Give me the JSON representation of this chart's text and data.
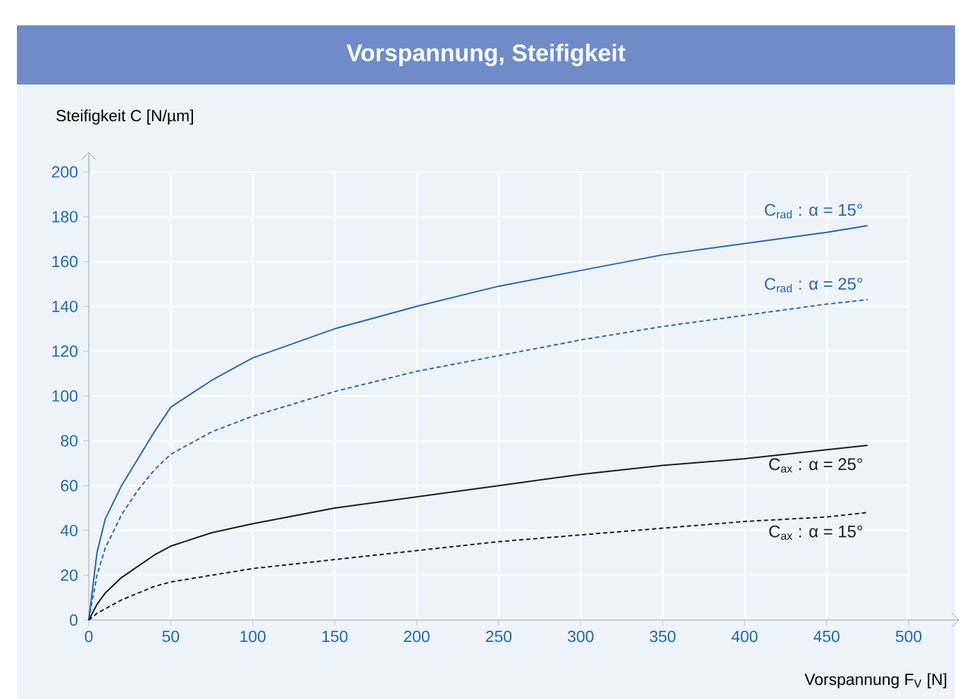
{
  "chart_data": {
    "type": "line",
    "title": "Vorspannung, Steifigkeit",
    "xlabel": "Vorspannung F$_{V}$ [N]",
    "ylabel": "Steifigkeit C [N/µm]",
    "x": [
      0,
      5,
      10,
      20,
      30,
      40,
      50,
      75,
      100,
      150,
      200,
      250,
      300,
      350,
      400,
      450,
      475
    ],
    "series": [
      {
        "name": "C$_{rad}$ : α = 15°",
        "color": "#1f68b0",
        "line_style": "solid",
        "values": [
          0,
          30,
          45,
          60,
          72,
          84,
          95,
          107,
          117,
          130,
          140,
          149,
          156,
          163,
          168,
          173,
          176
        ]
      },
      {
        "name": "C$_{rad}$ : α = 25°",
        "color": "#1f68b0",
        "line_style": "dashed",
        "values": [
          0,
          20,
          32,
          47,
          58,
          67,
          74,
          84,
          91,
          102,
          111,
          118,
          125,
          131,
          136,
          141,
          143
        ]
      },
      {
        "name": "C$_{ax}$ : α = 25°",
        "color": "#1a1a1a",
        "line_style": "solid",
        "values": [
          0,
          7,
          12,
          19,
          24,
          29,
          33,
          39,
          43,
          50,
          55,
          60,
          65,
          69,
          72,
          76,
          78
        ]
      },
      {
        "name": "C$_{ax}$ : α = 15°",
        "color": "#1a1a1a",
        "line_style": "dashed",
        "values": [
          0,
          3,
          5,
          9,
          12,
          15,
          17,
          20,
          23,
          27,
          31,
          35,
          38,
          41,
          44,
          46,
          48
        ]
      }
    ],
    "xlim": [
      0,
      500
    ],
    "ylim": [
      0,
      200
    ],
    "xticks": [
      0,
      50,
      100,
      150,
      200,
      250,
      300,
      350,
      400,
      450,
      500
    ],
    "yticks": [
      0,
      20,
      40,
      60,
      80,
      100,
      120,
      140,
      160,
      180,
      200
    ],
    "grid": true,
    "legend": false,
    "marker": "none"
  }
}
